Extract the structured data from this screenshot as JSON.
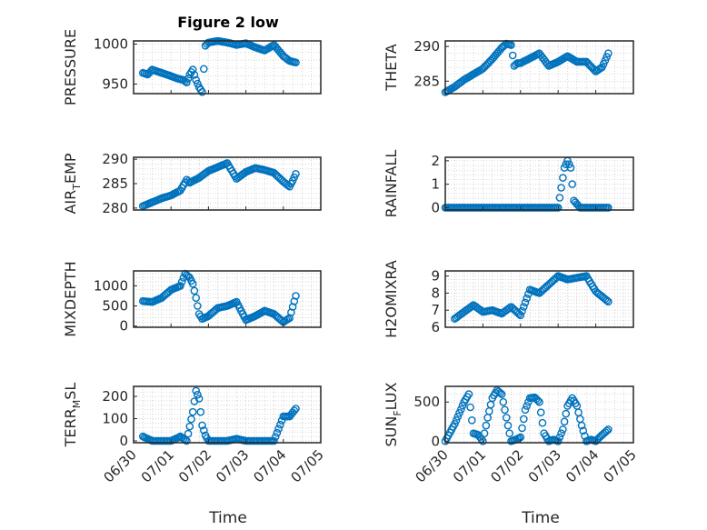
{
  "figure": {
    "title": "Figure 2 low",
    "xlabel": "Time"
  },
  "colors": {
    "marker": "#0072BD",
    "axis": "#262626",
    "grid": "#bdbdbd",
    "background": "#ffffff"
  },
  "chart_data": [
    {
      "type": "scatter",
      "id": "pressure",
      "title": "Figure 2 low",
      "ylabel": "PRESSURE",
      "ylabel_sub": "",
      "ylim": [
        938,
        1004
      ],
      "yticks": [
        950,
        1000
      ],
      "grid": "dotted major+minor",
      "marker": "open-circle",
      "x": [
        "06/30 06:00",
        "06/30 09:00",
        "06/30 12:00",
        "06/30 18:00",
        "07/01 00:00",
        "07/01 04:00",
        "07/01 08:00",
        "07/01 10:00",
        "07/01 12:00",
        "07/01 14:00",
        "07/01 16:00",
        "07/01 18:00",
        "07/01 20:00",
        "07/01 22:00",
        "07/02 00:00",
        "07/02 03:00",
        "07/02 06:00",
        "07/02 12:00",
        "07/02 18:00",
        "07/03 00:00",
        "07/03 06:00",
        "07/03 12:00",
        "07/03 18:00",
        "07/04 00:00",
        "07/04 04:00",
        "07/04 08:00"
      ],
      "y": [
        964,
        962,
        968,
        964,
        960,
        957,
        955,
        952,
        962,
        968,
        955,
        946,
        940,
        998,
        1002,
        1003,
        1004,
        1002,
        999,
        1001,
        996,
        992,
        999,
        985,
        979,
        977
      ]
    },
    {
      "type": "scatter",
      "id": "theta",
      "title": "",
      "ylabel": "THETA",
      "ylabel_sub": "",
      "ylim": [
        283.2,
        290.8
      ],
      "yticks": [
        285,
        290
      ],
      "grid": "dotted major+minor",
      "marker": "open-circle",
      "x": [
        "06/30 00:00",
        "06/30 06:00",
        "06/30 12:00",
        "06/30 18:00",
        "07/01 00:00",
        "07/01 06:00",
        "07/01 12:00",
        "07/01 15:00",
        "07/01 18:00",
        "07/01 20:00",
        "07/01 22:00",
        "07/02 00:00",
        "07/02 06:00",
        "07/02 12:00",
        "07/02 18:00",
        "07/03 00:00",
        "07/03 06:00",
        "07/03 12:00",
        "07/03 18:00",
        "07/04 00:00",
        "07/04 04:00",
        "07/04 08:00"
      ],
      "y": [
        283.4,
        284.2,
        285.2,
        286.0,
        286.8,
        288.2,
        289.8,
        290.4,
        290.2,
        287.2,
        287.6,
        287.6,
        288.3,
        289.0,
        287.2,
        287.8,
        288.6,
        287.8,
        287.8,
        286.4,
        287.0,
        289.0
      ]
    },
    {
      "type": "scatter",
      "id": "air_temp",
      "title": "",
      "ylabel": "AIR",
      "ylabel_sub": "T",
      "ylabel_tail": "EMP",
      "ylim": [
        279.6,
        290.4
      ],
      "yticks": [
        280,
        285,
        290
      ],
      "grid": "dotted major+minor",
      "marker": "open-circle",
      "x": [
        "06/30 06:00",
        "06/30 12:00",
        "06/30 18:00",
        "07/01 00:00",
        "07/01 06:00",
        "07/01 10:00",
        "07/01 12:00",
        "07/01 18:00",
        "07/02 00:00",
        "07/02 06:00",
        "07/02 12:00",
        "07/02 18:00",
        "07/03 00:00",
        "07/03 06:00",
        "07/03 12:00",
        "07/03 18:00",
        "07/04 00:00",
        "07/04 04:00",
        "07/04 06:00",
        "07/04 08:00"
      ],
      "y": [
        280.4,
        281.2,
        282.0,
        282.6,
        283.6,
        285.8,
        285.2,
        286.2,
        287.6,
        288.4,
        289.2,
        286.0,
        287.4,
        288.2,
        287.8,
        287.2,
        285.4,
        284.4,
        285.6,
        287.0
      ]
    },
    {
      "type": "scatter",
      "id": "rainfall",
      "title": "",
      "ylabel": "RAINFALL",
      "ylabel_sub": "",
      "ylim": [
        -0.1,
        2.15
      ],
      "yticks": [
        0,
        1,
        2
      ],
      "grid": "dotted major+minor",
      "marker": "open-circle",
      "x": [
        "06/30 00:00",
        "06/30 12:00",
        "07/01 00:00",
        "07/01 12:00",
        "07/02 00:00",
        "07/02 12:00",
        "07/03 00:00",
        "07/03 04:00",
        "07/03 06:00",
        "07/03 08:00",
        "07/03 10:00",
        "07/03 14:00",
        "07/03 18:00",
        "07/04 00:00",
        "07/04 08:00"
      ],
      "y": [
        0,
        0,
        0,
        0,
        0,
        0,
        0,
        1.7,
        2.0,
        1.7,
        0.3,
        0,
        0,
        0,
        0
      ]
    },
    {
      "type": "scatter",
      "id": "mixdepth",
      "title": "",
      "ylabel": "MIXDEPTH",
      "ylabel_sub": "",
      "ylim": [
        -30,
        1370
      ],
      "yticks": [
        0,
        500,
        1000
      ],
      "grid": "dotted major+minor",
      "marker": "open-circle",
      "x": [
        "06/30 06:00",
        "06/30 12:00",
        "06/30 18:00",
        "07/01 00:00",
        "07/01 06:00",
        "07/01 09:00",
        "07/01 12:00",
        "07/01 14:00",
        "07/01 16:00",
        "07/01 18:00",
        "07/01 20:00",
        "07/02 00:00",
        "07/02 06:00",
        "07/02 12:00",
        "07/02 18:00",
        "07/03 00:00",
        "07/03 06:00",
        "07/03 12:00",
        "07/03 18:00",
        "07/04 00:00",
        "07/04 04:00",
        "07/04 08:00"
      ],
      "y": [
        620,
        600,
        700,
        900,
        1000,
        1300,
        1200,
        1050,
        700,
        300,
        180,
        250,
        450,
        500,
        600,
        150,
        250,
        380,
        300,
        100,
        200,
        750
      ]
    },
    {
      "type": "scatter",
      "id": "h2omixra",
      "title": "",
      "ylabel": "H2OMIXRA",
      "ylabel_sub": "",
      "ylim": [
        6.0,
        9.3
      ],
      "yticks": [
        6,
        7,
        8,
        9
      ],
      "grid": "dotted major+minor",
      "marker": "open-circle",
      "x": [
        "06/30 06:00",
        "06/30 12:00",
        "06/30 18:00",
        "07/01 00:00",
        "07/01 06:00",
        "07/01 12:00",
        "07/01 18:00",
        "07/02 00:00",
        "07/02 06:00",
        "07/02 12:00",
        "07/02 18:00",
        "07/03 00:00",
        "07/03 06:00",
        "07/03 12:00",
        "07/03 18:00",
        "07/04 00:00",
        "07/04 04:00",
        "07/04 08:00"
      ],
      "y": [
        6.5,
        6.9,
        7.3,
        6.9,
        7.0,
        6.8,
        7.2,
        6.7,
        8.2,
        8.0,
        8.5,
        9.0,
        8.8,
        8.9,
        9.0,
        8.1,
        7.8,
        7.5
      ]
    },
    {
      "type": "scatter",
      "id": "terr_msl",
      "title": "",
      "ylabel": "TERR",
      "ylabel_sub": "M",
      "ylabel_tail": "SL",
      "ylim": [
        -8,
        245
      ],
      "yticks": [
        0,
        100,
        200
      ],
      "grid": "dotted major+minor",
      "marker": "open-circle",
      "xticks": [
        "06/30",
        "07/01",
        "07/02",
        "07/03",
        "07/04",
        "07/05"
      ],
      "x": [
        "06/30 06:00",
        "06/30 12:00",
        "06/30 18:00",
        "07/01 00:00",
        "07/01 06:00",
        "07/01 10:00",
        "07/01 14:00",
        "07/01 16:00",
        "07/01 18:00",
        "07/01 20:00",
        "07/01 22:00",
        "07/02 00:00",
        "07/02 06:00",
        "07/02 12:00",
        "07/02 18:00",
        "07/03 00:00",
        "07/03 06:00",
        "07/03 12:00",
        "07/03 18:00",
        "07/04 00:00",
        "07/04 04:00",
        "07/04 08:00"
      ],
      "y": [
        20,
        0,
        0,
        0,
        20,
        0,
        130,
        225,
        190,
        70,
        25,
        0,
        0,
        0,
        10,
        0,
        0,
        0,
        0,
        110,
        110,
        145
      ]
    },
    {
      "type": "scatter",
      "id": "sun_flux",
      "title": "",
      "ylabel": "SUN",
      "ylabel_sub": "F",
      "ylabel_tail": "LUX",
      "ylim": [
        -20,
        700
      ],
      "yticks": [
        0,
        500
      ],
      "grid": "dotted major+minor",
      "marker": "open-circle",
      "xticks": [
        "06/30",
        "07/01",
        "07/02",
        "07/03",
        "07/04",
        "07/05"
      ],
      "x": [
        "06/30 00:00",
        "06/30 06:00",
        "06/30 12:00",
        "06/30 15:00",
        "06/30 18:00",
        "06/30 21:00",
        "07/01 00:00",
        "07/01 03:00",
        "07/01 06:00",
        "07/01 09:00",
        "07/01 12:00",
        "07/01 15:00",
        "07/01 18:00",
        "07/01 21:00",
        "07/02 00:00",
        "07/02 03:00",
        "07/02 06:00",
        "07/02 09:00",
        "07/02 12:00",
        "07/02 15:00",
        "07/02 18:00",
        "07/02 21:00",
        "07/03 00:00",
        "07/03 03:00",
        "07/03 06:00",
        "07/03 09:00",
        "07/03 12:00",
        "07/03 15:00",
        "07/03 18:00",
        "07/03 21:00",
        "07/04 00:00",
        "07/04 04:00",
        "07/04 08:00"
      ],
      "y": [
        0,
        220,
        500,
        600,
        100,
        80,
        0,
        300,
        550,
        650,
        600,
        300,
        0,
        20,
        50,
        400,
        550,
        560,
        500,
        100,
        0,
        20,
        0,
        150,
        450,
        550,
        450,
        200,
        0,
        20,
        0,
        80,
        150
      ]
    }
  ]
}
